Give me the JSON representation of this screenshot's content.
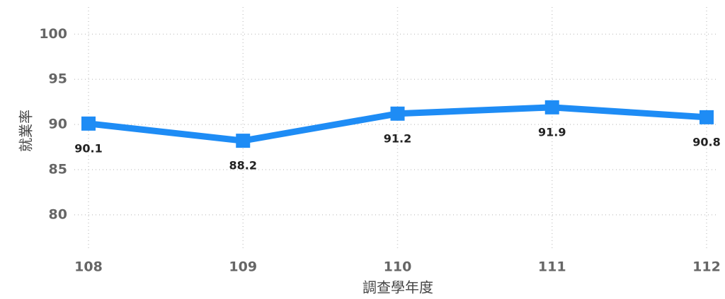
{
  "chart_data": {
    "type": "line",
    "categories": [
      "108",
      "109",
      "110",
      "111",
      "112"
    ],
    "series": [
      {
        "name": "就業率",
        "color": "#1e8cf5",
        "values": [
          90.1,
          88.2,
          91.2,
          91.9,
          90.8
        ]
      }
    ],
    "ylim": [
      76,
      103
    ],
    "yticks": [
      80,
      85,
      90,
      95,
      100
    ],
    "ylabel": "就業率",
    "xlabel": "調查學年度",
    "grid": true
  }
}
